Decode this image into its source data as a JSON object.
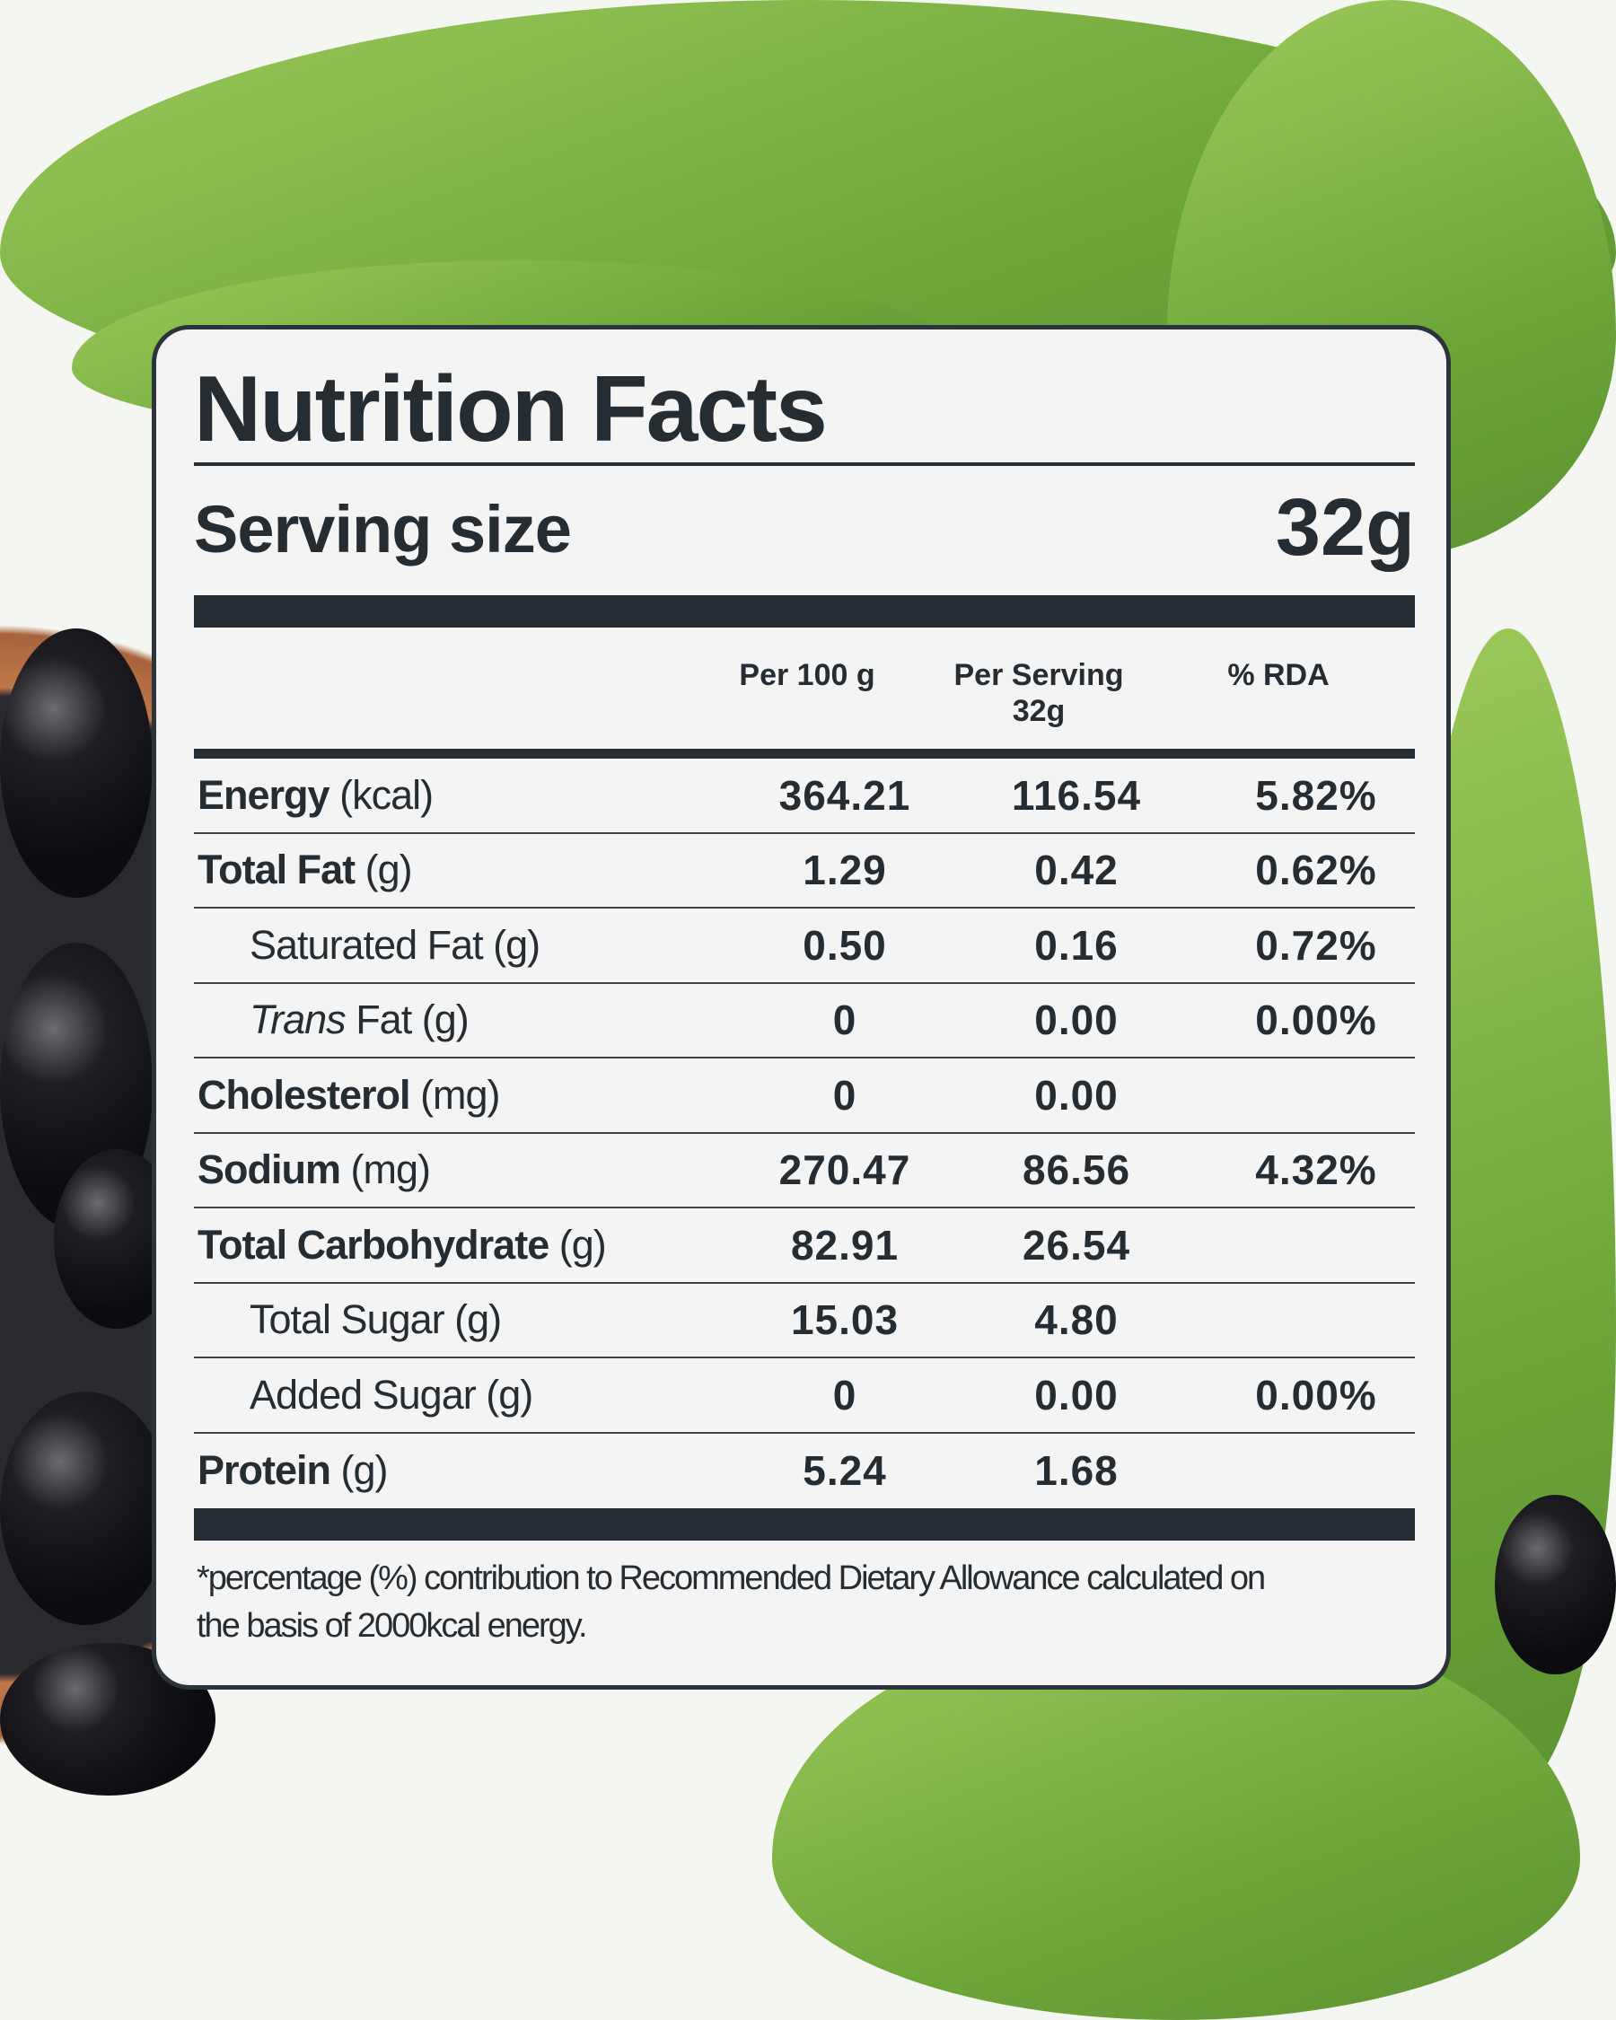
{
  "title": "Nutrition Facts",
  "serving": {
    "label": "Serving size",
    "value": "32g"
  },
  "columns": {
    "per100": "Per 100 g",
    "perServing": "Per Serving",
    "perServingSize": "32g",
    "rda": "% RDA"
  },
  "rows": [
    {
      "name": "Energy",
      "unit": "(kcal)",
      "per100": "364.21",
      "perServing": "116.54",
      "rda": "5.82%"
    },
    {
      "name": "Total Fat",
      "unit": "(g)",
      "per100": "1.29",
      "perServing": "0.42",
      "rda": "0.62%"
    },
    {
      "name": "Saturated Fat (g)",
      "per100": "0.50",
      "perServing": "0.16",
      "rda": "0.72%"
    },
    {
      "italic": "Trans",
      "name": " Fat (g)",
      "per100": "0",
      "perServing": "0.00",
      "rda": "0.00%"
    },
    {
      "name": "Cholesterol",
      "unit": "(mg)",
      "per100": "0",
      "perServing": "0.00",
      "rda": ""
    },
    {
      "name": "Sodium",
      "unit": "(mg)",
      "per100": "270.47",
      "perServing": "86.56",
      "rda": "4.32%"
    },
    {
      "name": "Total Carbohydrate",
      "unit": "(g)",
      "per100": "82.91",
      "perServing": "26.54",
      "rda": ""
    },
    {
      "name": "Total Sugar (g)",
      "per100": "15.03",
      "perServing": "4.80",
      "rda": ""
    },
    {
      "name": "Added Sugar (g)",
      "per100": "0",
      "perServing": "0.00",
      "rda": "0.00%"
    },
    {
      "name": "Protein",
      "unit": "(g)",
      "per100": "5.24",
      "perServing": "1.68",
      "rda": ""
    }
  ],
  "footnote_line1": "*percentage (%) contribution to Recommended Dietary Allowance calculated on",
  "footnote_line2": "the basis of 2000kcal energy.",
  "colors": {
    "ink": "#252d33",
    "card": "#f4f4f4",
    "leaf": "#7bb043",
    "berry": "#141418"
  }
}
